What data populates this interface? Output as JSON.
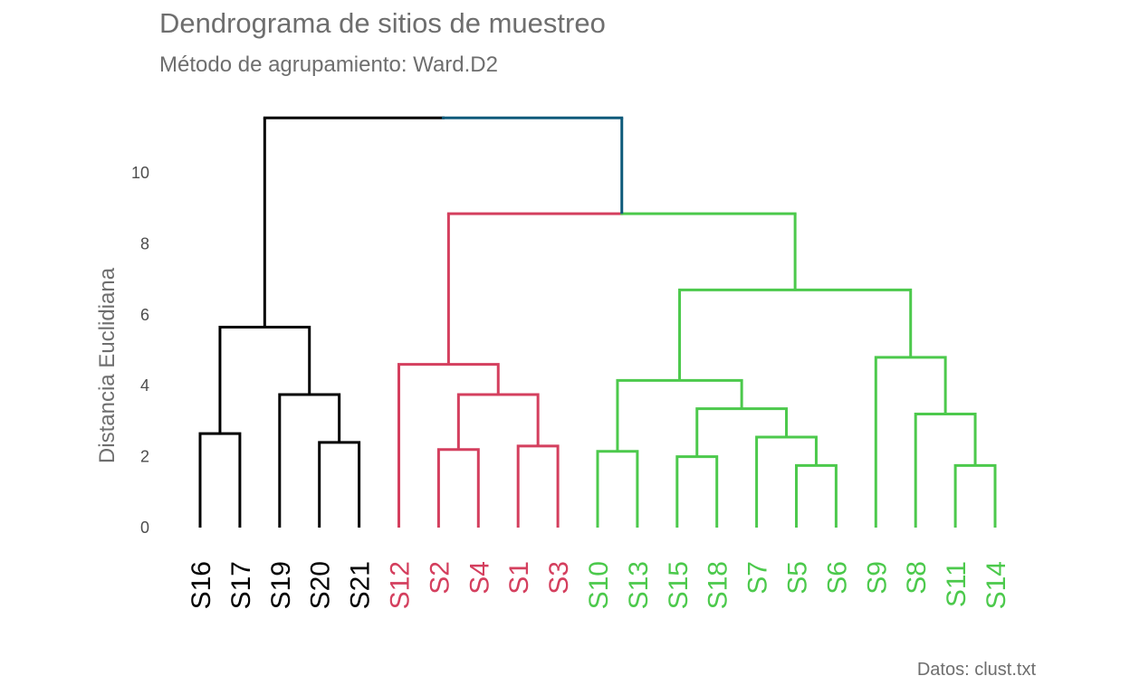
{
  "title": "Dendrograma de sitios de muestreo",
  "subtitle": "Método de agrupamiento: Ward.D2",
  "caption": "Datos: clust.txt",
  "chart_data": {
    "type": "dendrogram",
    "ylabel": "Distancia Euclidiana",
    "ylim": [
      0,
      11.6
    ],
    "yticks": [
      "0",
      "2",
      "4",
      "6",
      "8",
      "10"
    ],
    "leaves": [
      "S16",
      "S17",
      "S19",
      "S20",
      "S21",
      "S12",
      "S2",
      "S4",
      "S1",
      "S3",
      "S10",
      "S13",
      "S15",
      "S18",
      "S7",
      "S5",
      "S6",
      "S9",
      "S8",
      "S11",
      "S14"
    ],
    "colors": {
      "black": "#000000",
      "red": "#d43f5e",
      "green": "#4cc94c",
      "blue": "#0e5a7a"
    },
    "leaf_colors": [
      "black",
      "black",
      "black",
      "black",
      "black",
      "red",
      "red",
      "red",
      "red",
      "red",
      "green",
      "green",
      "green",
      "green",
      "green",
      "green",
      "green",
      "green",
      "green",
      "green",
      "green"
    ],
    "merges": [
      {
        "left": "S16",
        "right": "S17",
        "height": 2.65,
        "color": "black"
      },
      {
        "left": "S20",
        "right": "S21",
        "height": 2.4,
        "color": "black"
      },
      {
        "left": "S19",
        "right": [
          "S20",
          "S21"
        ],
        "height": 3.75,
        "color": "black"
      },
      {
        "left": [
          "S16",
          "S17"
        ],
        "right": [
          "S19",
          "S20",
          "S21"
        ],
        "height": 5.65,
        "color": "black"
      },
      {
        "left": "S2",
        "right": "S4",
        "height": 2.2,
        "color": "red"
      },
      {
        "left": "S1",
        "right": "S3",
        "height": 2.3,
        "color": "red"
      },
      {
        "left": [
          "S2",
          "S4"
        ],
        "right": [
          "S1",
          "S3"
        ],
        "height": 3.75,
        "color": "red"
      },
      {
        "left": "S12",
        "right": [
          "S2",
          "S4",
          "S1",
          "S3"
        ],
        "height": 4.6,
        "color": "red"
      },
      {
        "left": "S10",
        "right": "S13",
        "height": 2.15,
        "color": "green"
      },
      {
        "left": "S15",
        "right": "S18",
        "height": 2.0,
        "color": "green"
      },
      {
        "left": "S5",
        "right": "S6",
        "height": 1.75,
        "color": "green"
      },
      {
        "left": "S7",
        "right": [
          "S5",
          "S6"
        ],
        "height": 2.55,
        "color": "green"
      },
      {
        "left": [
          "S15",
          "S18"
        ],
        "right": [
          "S7",
          "S5",
          "S6"
        ],
        "height": 3.35,
        "color": "green"
      },
      {
        "left": [
          "S10",
          "S13"
        ],
        "right": [
          "S15",
          "S18",
          "S7",
          "S5",
          "S6"
        ],
        "height": 4.15,
        "color": "green"
      },
      {
        "left": "S11",
        "right": "S14",
        "height": 1.75,
        "color": "green"
      },
      {
        "left": "S8",
        "right": [
          "S11",
          "S14"
        ],
        "height": 3.2,
        "color": "green"
      },
      {
        "left": "S9",
        "right": [
          "S8",
          "S11",
          "S14"
        ],
        "height": 4.8,
        "color": "green"
      },
      {
        "left": [
          "S10",
          "S13",
          "S15",
          "S18",
          "S7",
          "S5",
          "S6"
        ],
        "right": [
          "S9",
          "S8",
          "S11",
          "S14"
        ],
        "height": 6.7,
        "color": "green"
      },
      {
        "left": [
          "S12",
          "S2",
          "S4",
          "S1",
          "S3"
        ],
        "right": [
          "S10",
          "S13",
          "S15",
          "S18",
          "S7",
          "S5",
          "S6",
          "S9",
          "S8",
          "S11",
          "S14"
        ],
        "height": 8.85,
        "color": "mixed"
      },
      {
        "left": [
          "S16",
          "S17",
          "S19",
          "S20",
          "S21"
        ],
        "right": [
          "S12",
          "S2",
          "S4",
          "S1",
          "S3",
          "S10",
          "S13",
          "S15",
          "S18",
          "S7",
          "S5",
          "S6",
          "S9",
          "S8",
          "S11",
          "S14"
        ],
        "height": 11.55,
        "color": "mixed"
      }
    ]
  }
}
